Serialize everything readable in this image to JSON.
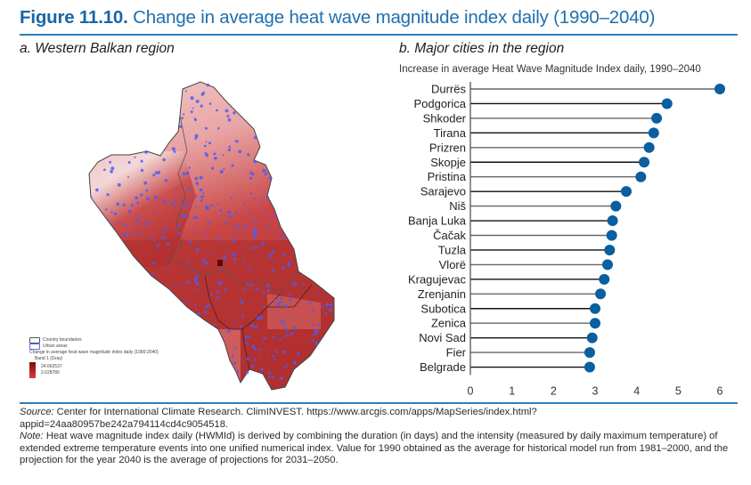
{
  "figure": {
    "number": "Figure 11.10.",
    "title": "Change in average heat wave magnitude index daily (1990–2040)",
    "accent_color": "#1f6fad"
  },
  "panel_a": {
    "label": "a. Western Balkan region",
    "legend": {
      "country_boundaries": "Country boundaries",
      "urban_areas": "Urban areas",
      "layer_title": "Change in average heat wave magnitude index daily (1990-2040)",
      "band": "Band 1 (Gray)",
      "max_value": "24.662537",
      "min_value": "2.628786"
    }
  },
  "panel_b": {
    "label": "b. Major cities in the region"
  },
  "chart_data": {
    "type": "lollipop",
    "title": "Increase in average Heat Wave Magnitude Index daily, 1990–2040",
    "xlabel": "",
    "ylabel": "",
    "xlim": [
      0,
      6
    ],
    "xticks": [
      0,
      1,
      2,
      3,
      4,
      5,
      6
    ],
    "grid": false,
    "marker_color": "#0a5fa0",
    "categories": [
      "Durrës",
      "Podgorica",
      "Shkoder",
      "Tirana",
      "Prizren",
      "Skopje",
      "Pristina",
      "Sarajevo",
      "Niš",
      "Banja Luka",
      "Čačak",
      "Tuzla",
      "Vlorë",
      "Kragujevac",
      "Zrenjanin",
      "Subotica",
      "Zenica",
      "Novi Sad",
      "Fier",
      "Belgrade"
    ],
    "values": [
      6.0,
      4.73,
      4.48,
      4.41,
      4.3,
      4.18,
      4.1,
      3.75,
      3.5,
      3.42,
      3.4,
      3.35,
      3.3,
      3.22,
      3.13,
      3.0,
      3.0,
      2.93,
      2.87,
      2.87
    ]
  },
  "footer": {
    "source_label": "Source:",
    "source_text": " Center for International Climate Research. ClimINVEST. https://www.arcgis.com/apps/MapSeries/index.html?appid=24aa80957be242a794114cd4c9054518.",
    "note_label": "Note:",
    "note_text": " Heat wave magnitude index daily (HWMId) is derived by combining the duration (in days) and the intensity (measured by daily maximum temperature) of extended extreme temperature events into one unified numerical index. Value for 1990 obtained as the average for historical model run from 1981–2000, and the projection for the year 2040 is the average of projections for 2031–2050."
  }
}
